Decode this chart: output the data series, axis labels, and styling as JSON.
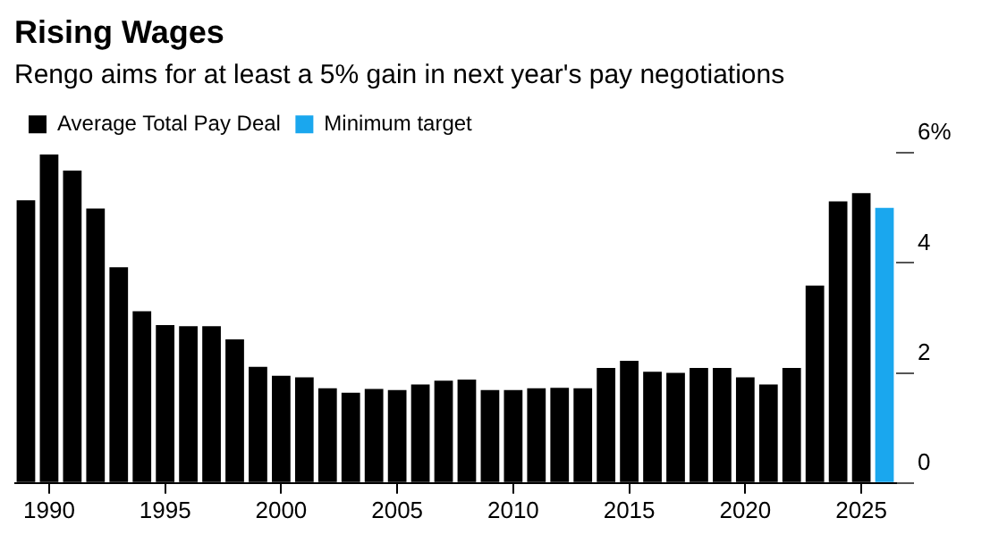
{
  "chart_data": {
    "type": "bar",
    "title": "Rising Wages",
    "subtitle": "Rengo aims for at least a 5% gain in next year's pay negotiations",
    "categories": [
      null,
      "1990",
      null,
      null,
      null,
      null,
      "1995",
      null,
      null,
      null,
      null,
      "2000",
      null,
      null,
      null,
      null,
      "2005",
      null,
      null,
      null,
      null,
      "2010",
      null,
      null,
      null,
      null,
      "2015",
      null,
      null,
      null,
      null,
      "2020",
      null,
      null,
      null,
      null,
      "2025",
      null
    ],
    "series": [
      {
        "name": "Average Total Pay Deal",
        "color": "#000000",
        "values": [
          5.14,
          5.97,
          5.68,
          4.99,
          3.92,
          3.12,
          2.87,
          2.85,
          2.85,
          2.61,
          2.11,
          1.95,
          1.92,
          1.72,
          1.64,
          1.71,
          1.69,
          1.79,
          1.86,
          1.88,
          1.69,
          1.69,
          1.72,
          1.73,
          1.72,
          2.09,
          2.22,
          2.02,
          2.0,
          2.09,
          2.09,
          1.92,
          1.79,
          2.09,
          3.59,
          5.12,
          5.27,
          null
        ]
      },
      {
        "name": "Minimum target",
        "color": "#1aa7ee",
        "values": [
          null,
          null,
          null,
          null,
          null,
          null,
          null,
          null,
          null,
          null,
          null,
          null,
          null,
          null,
          null,
          null,
          null,
          null,
          null,
          null,
          null,
          null,
          null,
          null,
          null,
          null,
          null,
          null,
          null,
          null,
          null,
          null,
          null,
          null,
          null,
          null,
          null,
          5.0
        ]
      }
    ],
    "ylim": [
      0,
      6
    ],
    "yticks": [
      0,
      2,
      4,
      {
        "value": 6,
        "label": "6%"
      }
    ],
    "grid": false,
    "legend": "top left"
  }
}
